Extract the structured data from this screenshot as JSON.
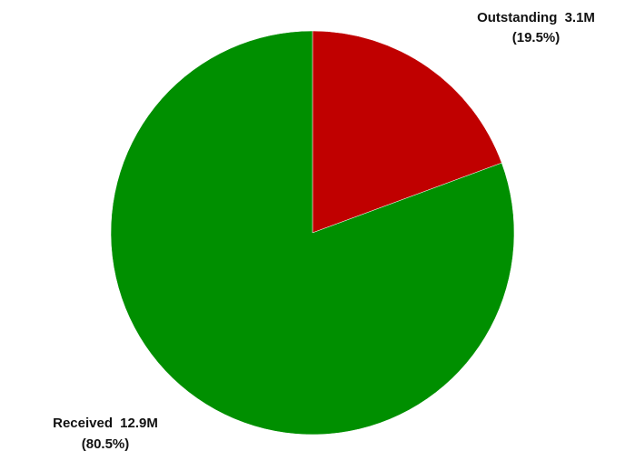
{
  "chart_data": {
    "type": "pie",
    "slices": [
      {
        "name": "Outstanding",
        "value_label": "3.1M",
        "value": 3.1,
        "percent": 19.5,
        "percent_label": "(19.5%)",
        "color": "#c00000"
      },
      {
        "name": "Received",
        "value_label": "12.9M",
        "value": 12.9,
        "percent": 80.5,
        "percent_label": "(80.5%)",
        "color": "#008f00"
      }
    ]
  }
}
